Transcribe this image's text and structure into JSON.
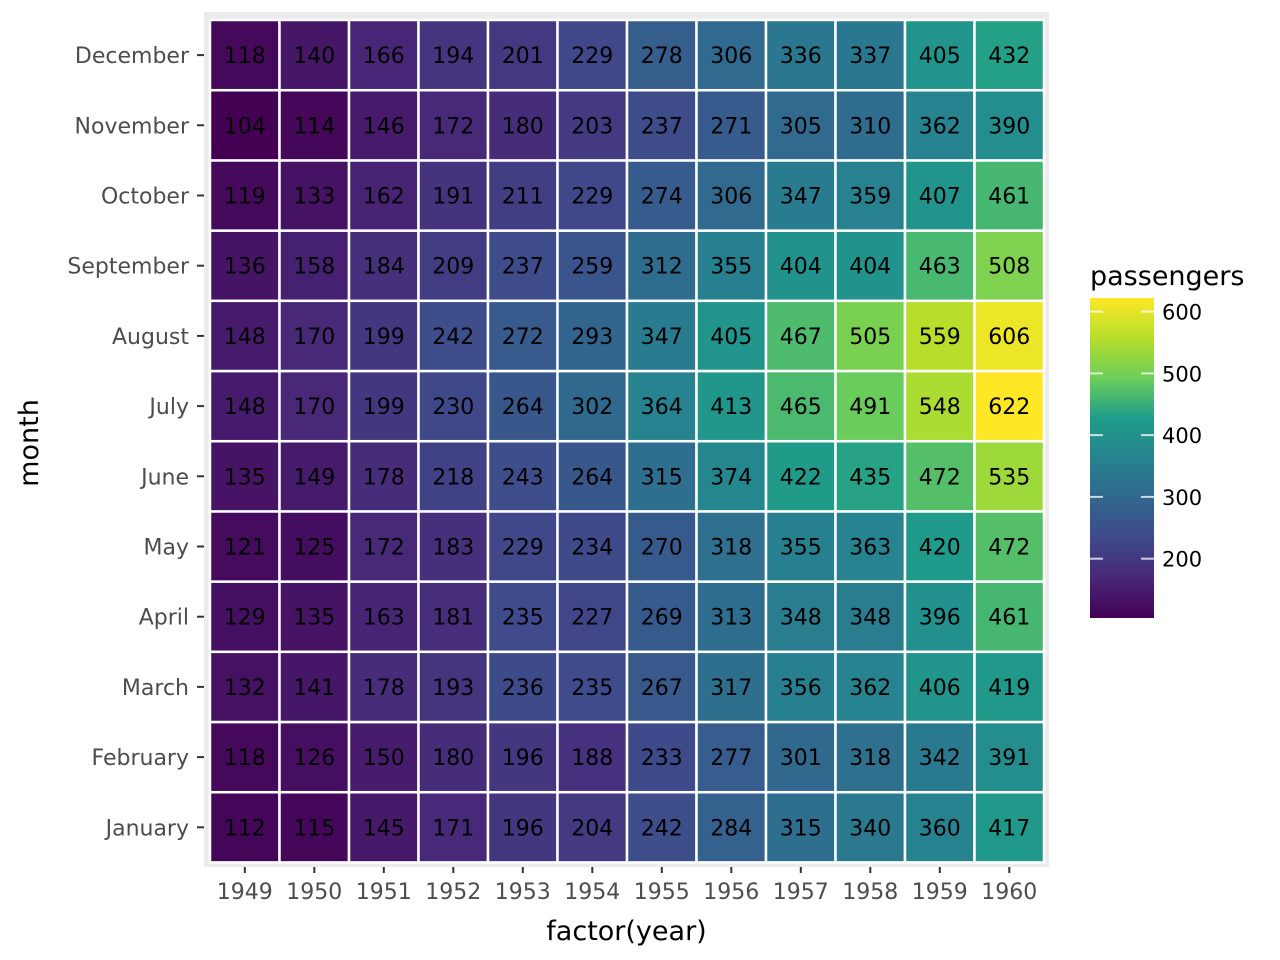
{
  "chart_data": {
    "type": "heatmap",
    "title": "",
    "xlabel": "factor(year)",
    "ylabel": "month",
    "x": [
      "1949",
      "1950",
      "1951",
      "1952",
      "1953",
      "1954",
      "1955",
      "1956",
      "1957",
      "1958",
      "1959",
      "1960"
    ],
    "y": [
      "January",
      "February",
      "March",
      "April",
      "May",
      "June",
      "July",
      "August",
      "September",
      "October",
      "November",
      "December"
    ],
    "values": [
      [
        112,
        115,
        145,
        171,
        196,
        204,
        242,
        284,
        315,
        340,
        360,
        417
      ],
      [
        118,
        126,
        150,
        180,
        196,
        188,
        233,
        277,
        301,
        318,
        342,
        391
      ],
      [
        132,
        141,
        178,
        193,
        236,
        235,
        267,
        317,
        356,
        362,
        406,
        419
      ],
      [
        129,
        135,
        163,
        181,
        235,
        227,
        269,
        313,
        348,
        348,
        396,
        461
      ],
      [
        121,
        125,
        172,
        183,
        229,
        234,
        270,
        318,
        355,
        363,
        420,
        472
      ],
      [
        135,
        149,
        178,
        218,
        243,
        264,
        315,
        374,
        422,
        435,
        472,
        535
      ],
      [
        148,
        170,
        199,
        230,
        264,
        302,
        364,
        413,
        465,
        491,
        548,
        622
      ],
      [
        148,
        170,
        199,
        242,
        272,
        293,
        347,
        405,
        467,
        505,
        559,
        606
      ],
      [
        136,
        158,
        184,
        209,
        237,
        259,
        312,
        355,
        404,
        404,
        463,
        508
      ],
      [
        119,
        133,
        162,
        191,
        211,
        229,
        274,
        306,
        347,
        359,
        407,
        461
      ],
      [
        104,
        114,
        146,
        172,
        180,
        203,
        237,
        271,
        305,
        310,
        362,
        390
      ],
      [
        118,
        140,
        166,
        194,
        201,
        229,
        278,
        306,
        336,
        337,
        405,
        432
      ]
    ],
    "cell_labels": true,
    "legend": {
      "title": "passengers",
      "ticks": [
        200,
        300,
        400,
        500,
        600
      ],
      "tick_labels": [
        "200",
        "300",
        "400",
        "500",
        "600"
      ],
      "range": [
        104,
        622
      ],
      "placement": "right"
    },
    "colormap": "viridis",
    "colors": {
      "panel_background": "#ebebeb",
      "tile_border": "#ffffff",
      "tick_text": "#4d4d4d",
      "axis_tick": "#333333",
      "viridis_stops": [
        "#440154",
        "#482777",
        "#3f4a8a",
        "#31678e",
        "#26838f",
        "#1f9d8a",
        "#6cce5a",
        "#b6de2b",
        "#fee825"
      ]
    },
    "grid": false
  }
}
